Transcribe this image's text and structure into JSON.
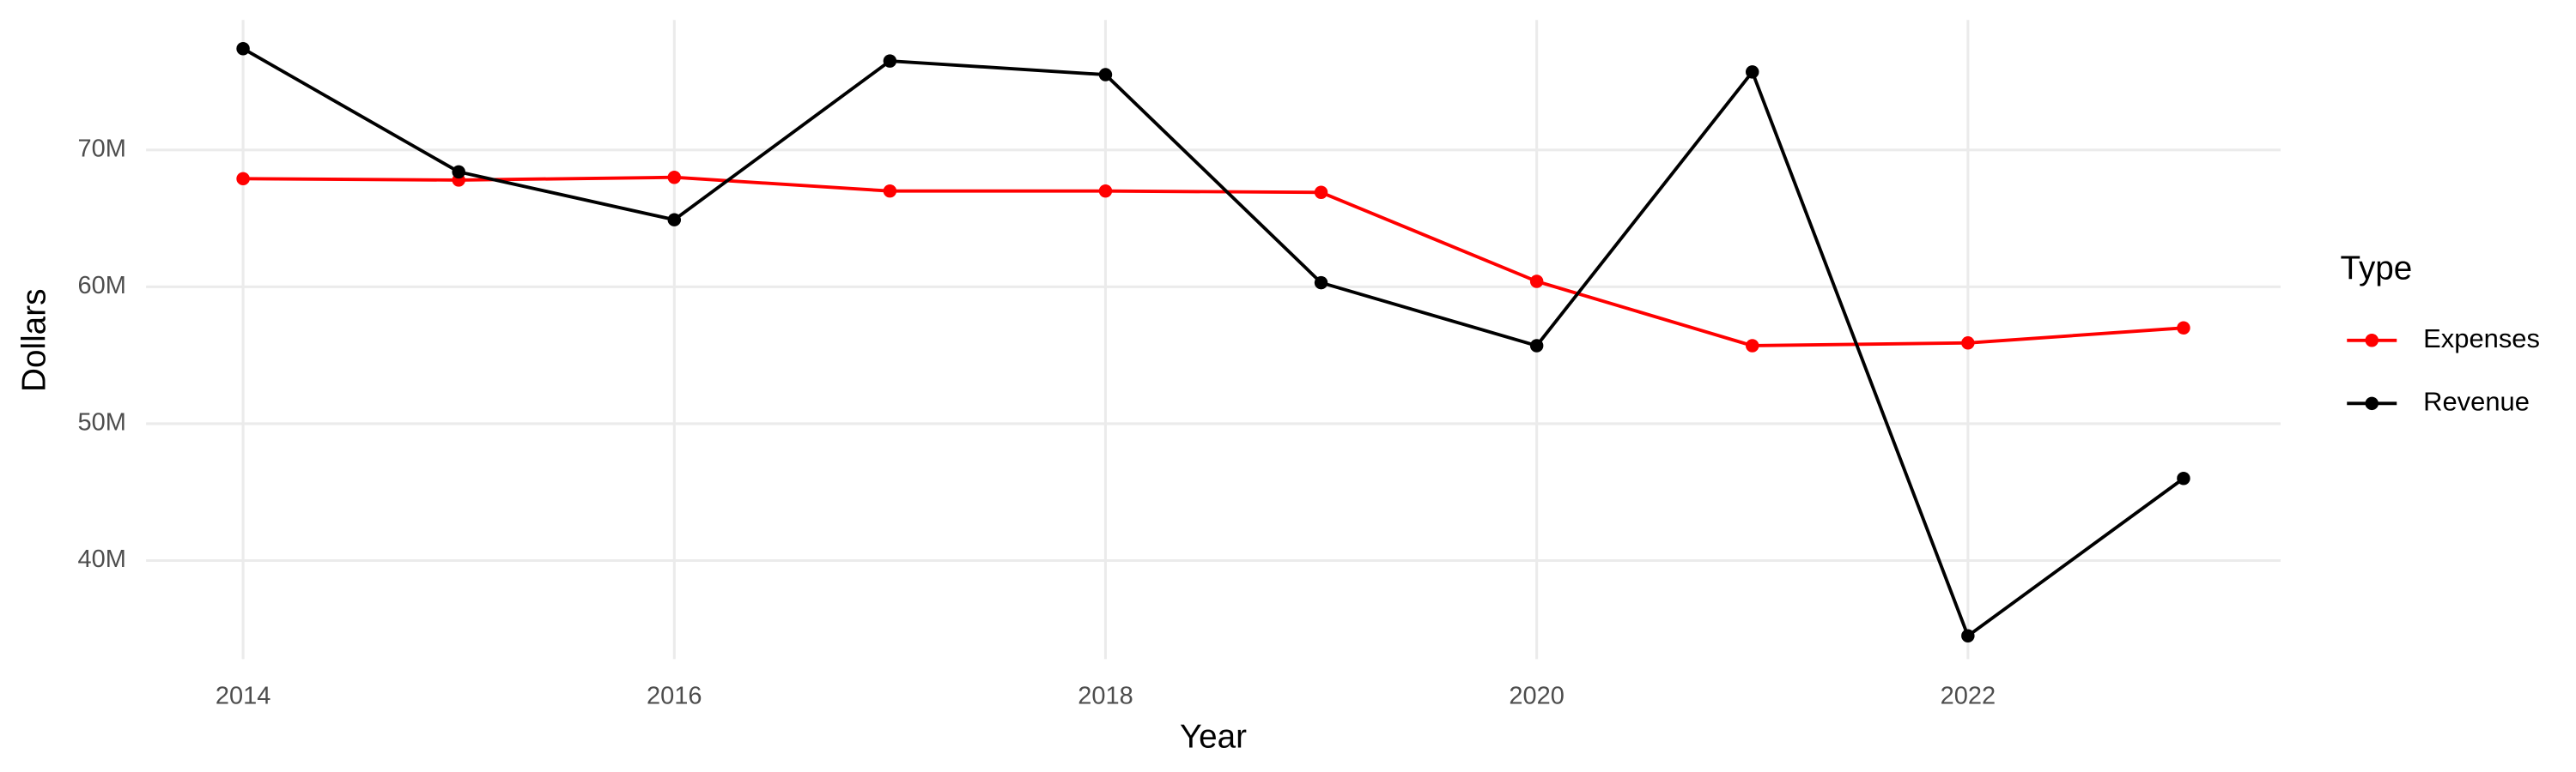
{
  "chart_data": {
    "type": "line",
    "x_label": "Year",
    "y_label": "Dollars",
    "legend_title": "Type",
    "legend_position": "right",
    "grid": true,
    "x": [
      2014,
      2015,
      2016,
      2017,
      2018,
      2019,
      2020,
      2021,
      2022,
      2023
    ],
    "series": [
      {
        "name": "Expenses",
        "color": "#ff0000",
        "values": [
          67900000,
          67800000,
          68000000,
          67000000,
          67000000,
          66900000,
          60400000,
          55700000,
          55900000,
          57000000
        ]
      },
      {
        "name": "Revenue",
        "color": "#000000",
        "values": [
          77400000,
          68400000,
          64900000,
          76500000,
          75500000,
          60300000,
          55700000,
          75700000,
          34500000,
          46000000
        ]
      }
    ],
    "xlim": [
      2013.55,
      2023.45
    ],
    "xticks": [
      2014,
      2016,
      2018,
      2020,
      2022
    ],
    "ylim": [
      32800000,
      79500000
    ],
    "yticks": [
      {
        "value": 40000000,
        "label": "40M"
      },
      {
        "value": 50000000,
        "label": "50M"
      },
      {
        "value": 60000000,
        "label": "60M"
      },
      {
        "value": 70000000,
        "label": "70M"
      }
    ]
  }
}
